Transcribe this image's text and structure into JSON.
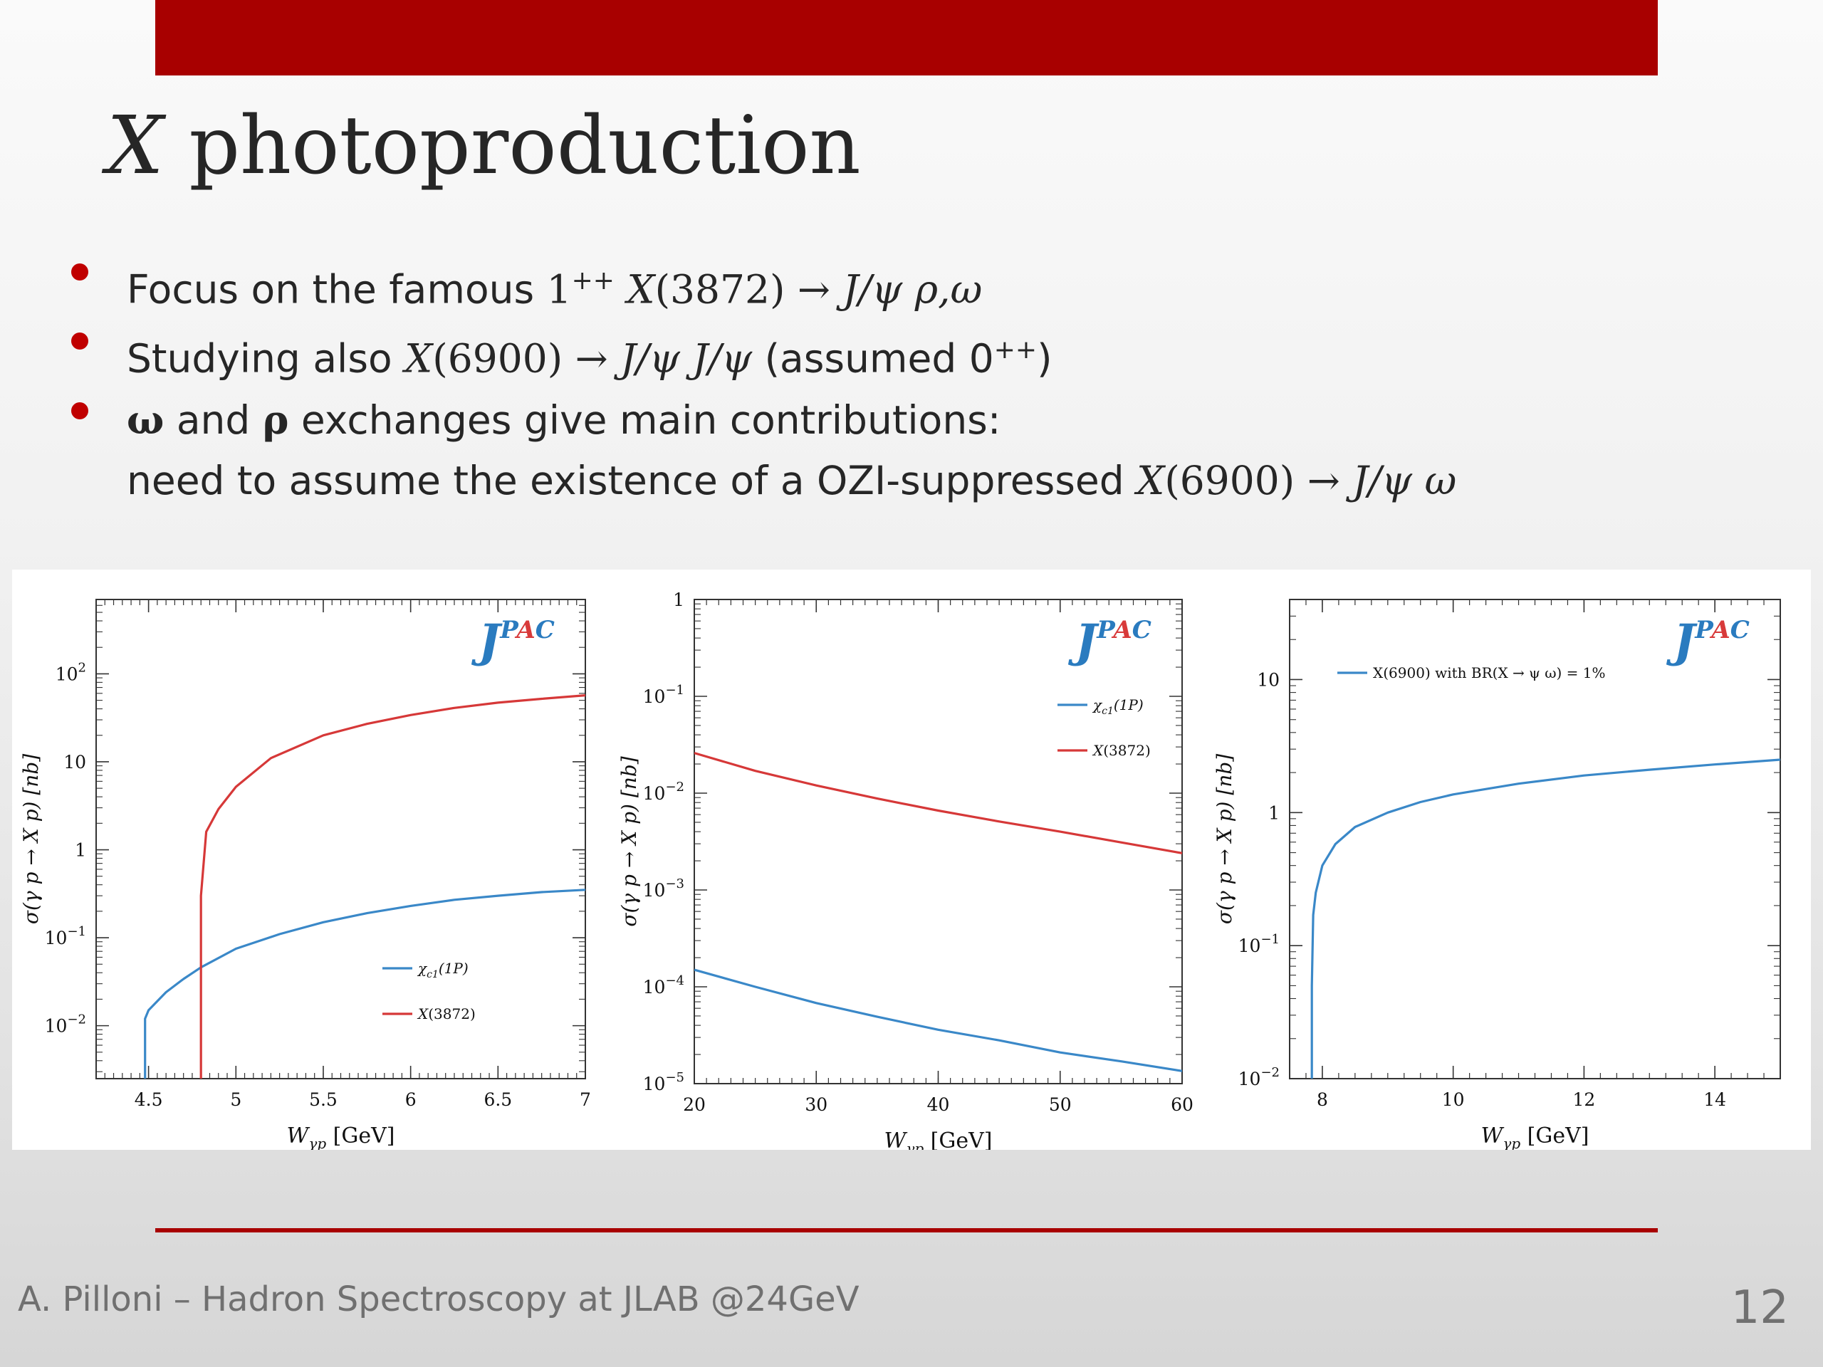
{
  "slide": {
    "title_var": "X",
    "title_rest": " photoproduction",
    "bullets": [
      {
        "pre": "Focus on the famous ",
        "math1": "1",
        "sup": "++",
        "math2": " X",
        "math3": "(3872) → ",
        "math4": "J/ψ ρ,ω",
        "post": ""
      },
      {
        "pre": "Studying also ",
        "math1": "X",
        "math2": "(6900) → ",
        "math3": "J/ψ J/ψ",
        "post": " (assumed 0",
        "sup": "++",
        "post2": ")"
      },
      {
        "b1": "ω",
        "t1": " and ",
        "b2": "ρ",
        "t2": " exchanges give main contributions:",
        "line2_pre": "need to assume the existence of a OZI-suppressed ",
        "line2_m1": "X",
        "line2_m2": "(6900) → ",
        "line2_m3": "J/ψ ω"
      }
    ],
    "footer": "A. Pilloni – Hadron Spectroscopy at JLAB @24GeV",
    "page_number": "12"
  },
  "colors": {
    "red_bar": "#a80000",
    "blue_series": "#3a88c8",
    "red_series": "#d63838",
    "logo_blue": "#2a7bbf",
    "logo_red": "#d83a3a"
  },
  "logo": {
    "j": "J",
    "p": "P",
    "a": "A",
    "c": "C"
  },
  "chart_data": [
    {
      "type": "line",
      "xlabel_main": "W",
      "xlabel_sub": "γp",
      "xlabel_unit": " [GeV]",
      "ylabel": "σ(γ p → X p)  [nb]",
      "xlim": [
        4.2,
        7.0
      ],
      "ylim": [
        0.0025,
        700
      ],
      "yscale": "log",
      "xticks": [
        4.5,
        5,
        5.5,
        6,
        6.5,
        7
      ],
      "xtick_labels": [
        "4.5",
        "5",
        "5.5",
        "6",
        "6.5",
        "7"
      ],
      "yticks": [
        0.01,
        0.1,
        1,
        10,
        100
      ],
      "ytick_labels": [
        [
          "10",
          "−2"
        ],
        [
          "10",
          "−1"
        ],
        [
          "1",
          ""
        ],
        [
          "10",
          ""
        ],
        [
          "10",
          "2"
        ]
      ],
      "legend": {
        "position": "lower-right"
      },
      "series": [
        {
          "name": "χ",
          "name_sub": "c1",
          "name_rest": "(1P)",
          "color": "#3a88c8",
          "x": [
            4.48,
            4.48,
            4.5,
            4.6,
            4.7,
            4.8,
            5.0,
            5.25,
            5.5,
            5.75,
            6.0,
            6.25,
            6.5,
            6.75,
            7.0
          ],
          "y": [
            0.0025,
            0.012,
            0.015,
            0.024,
            0.034,
            0.046,
            0.075,
            0.11,
            0.15,
            0.19,
            0.23,
            0.27,
            0.3,
            0.33,
            0.35
          ]
        },
        {
          "name": "X",
          "name_sub": "",
          "name_rest": "(3872)",
          "color": "#d63838",
          "x": [
            4.8,
            4.8,
            4.83,
            4.9,
            5.0,
            5.2,
            5.5,
            5.75,
            6.0,
            6.25,
            6.5,
            6.75,
            7.0
          ],
          "y": [
            0.0025,
            0.3,
            1.6,
            2.9,
            5.2,
            11,
            20,
            27,
            34,
            41,
            47,
            52,
            57
          ]
        }
      ]
    },
    {
      "type": "line",
      "xlabel_main": "W",
      "xlabel_sub": "γp",
      "xlabel_unit": " [GeV]",
      "ylabel": "σ(γ p → X p)  [nb]",
      "xlim": [
        20,
        60
      ],
      "ylim": [
        1e-05,
        1
      ],
      "yscale": "log",
      "xticks": [
        20,
        30,
        40,
        50,
        60
      ],
      "xtick_labels": [
        "20",
        "30",
        "40",
        "50",
        "60"
      ],
      "yticks": [
        1e-05,
        0.0001,
        0.001,
        0.01,
        0.1,
        1
      ],
      "ytick_labels": [
        [
          "10",
          "−5"
        ],
        [
          "10",
          "−4"
        ],
        [
          "10",
          "−3"
        ],
        [
          "10",
          "−2"
        ],
        [
          "10",
          "−1"
        ],
        [
          "1",
          ""
        ]
      ],
      "legend": {
        "position": "upper-right"
      },
      "series": [
        {
          "name": "χ",
          "name_sub": "c1",
          "name_rest": "(1P)",
          "color": "#3a88c8",
          "x": [
            20,
            25,
            30,
            35,
            40,
            45,
            50,
            55,
            60
          ],
          "y": [
            0.00015,
            0.0001,
            6.8e-05,
            4.9e-05,
            3.6e-05,
            2.8e-05,
            2.1e-05,
            1.7e-05,
            1.35e-05
          ]
        },
        {
          "name": "X",
          "name_sub": "",
          "name_rest": "(3872)",
          "color": "#d63838",
          "x": [
            20,
            25,
            30,
            35,
            40,
            45,
            50,
            55,
            60
          ],
          "y": [
            0.026,
            0.017,
            0.012,
            0.0088,
            0.0066,
            0.0051,
            0.004,
            0.0031,
            0.0024
          ]
        }
      ]
    },
    {
      "type": "line",
      "xlabel_main": "W",
      "xlabel_sub": "γp",
      "xlabel_unit": " [GeV]",
      "ylabel": "σ(γ p → X p)  [nb]",
      "xlim": [
        7.5,
        15
      ],
      "ylim": [
        0.01,
        40
      ],
      "yscale": "log",
      "xticks": [
        8,
        10,
        12,
        14
      ],
      "xtick_labels": [
        "8",
        "10",
        "12",
        "14"
      ],
      "yticks": [
        0.01,
        0.1,
        1,
        10
      ],
      "ytick_labels": [
        [
          "10",
          "−2"
        ],
        [
          "10",
          "−1"
        ],
        [
          "1",
          ""
        ],
        [
          "10",
          ""
        ]
      ],
      "legend": {
        "position": "upper-left"
      },
      "series": [
        {
          "name": "X(6900) with BR(X  →  ψ ω) = 1%",
          "name_sub": "",
          "name_rest": "",
          "color": "#3a88c8",
          "x": [
            7.84,
            7.84,
            7.86,
            7.9,
            8.0,
            8.2,
            8.5,
            9.0,
            9.5,
            10,
            11,
            12,
            13,
            14,
            15
          ],
          "y": [
            0.01,
            0.05,
            0.17,
            0.25,
            0.4,
            0.58,
            0.78,
            1.0,
            1.2,
            1.37,
            1.65,
            1.9,
            2.1,
            2.3,
            2.5
          ]
        }
      ]
    }
  ]
}
